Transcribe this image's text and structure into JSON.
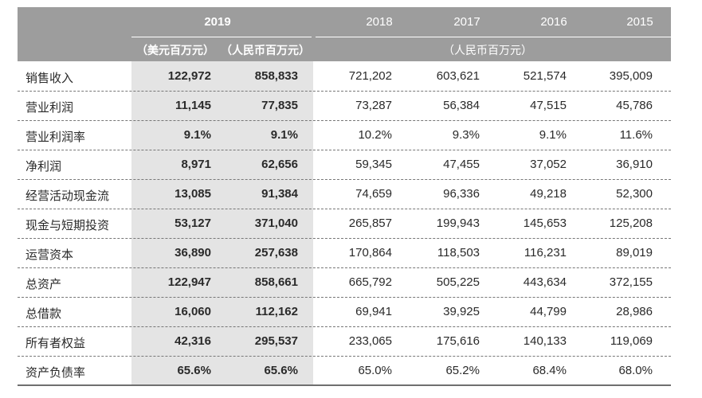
{
  "header": {
    "years": [
      "2019",
      "2018",
      "2017",
      "2016",
      "2015"
    ],
    "unit_usd": "（美元百万元）",
    "unit_rmb": "（人民币百万元）",
    "unit_rmb_hist": "（人民币百万元）"
  },
  "rows": [
    {
      "label": "销售收入",
      "usd": "122,972",
      "rmb": "858,833",
      "y2018": "721,202",
      "y2017": "603,621",
      "y2016": "521,574",
      "y2015": "395,009"
    },
    {
      "label": "营业利润",
      "usd": "11,145",
      "rmb": "77,835",
      "y2018": "73,287",
      "y2017": "56,384",
      "y2016": "47,515",
      "y2015": "45,786"
    },
    {
      "label": "营业利润率",
      "usd": "9.1%",
      "rmb": "9.1%",
      "y2018": "10.2%",
      "y2017": "9.3%",
      "y2016": "9.1%",
      "y2015": "11.6%"
    },
    {
      "label": "净利润",
      "usd": "8,971",
      "rmb": "62,656",
      "y2018": "59,345",
      "y2017": "47,455",
      "y2016": "37,052",
      "y2015": "36,910"
    },
    {
      "label": "经营活动现金流",
      "usd": "13,085",
      "rmb": "91,384",
      "y2018": "74,659",
      "y2017": "96,336",
      "y2016": "49,218",
      "y2015": "52,300"
    },
    {
      "label": "现金与短期投资",
      "usd": "53,127",
      "rmb": "371,040",
      "y2018": "265,857",
      "y2017": "199,943",
      "y2016": "145,653",
      "y2015": "125,208"
    },
    {
      "label": "运营资本",
      "usd": "36,890",
      "rmb": "257,638",
      "y2018": "170,864",
      "y2017": "118,503",
      "y2016": "116,231",
      "y2015": "89,019"
    },
    {
      "label": "总资产",
      "usd": "122,947",
      "rmb": "858,661",
      "y2018": "665,792",
      "y2017": "505,225",
      "y2016": "443,634",
      "y2015": "372,155"
    },
    {
      "label": "总借款",
      "usd": "16,060",
      "rmb": "112,162",
      "y2018": "69,941",
      "y2017": "39,925",
      "y2016": "44,799",
      "y2015": "28,986"
    },
    {
      "label": "所有者权益",
      "usd": "42,316",
      "rmb": "295,537",
      "y2018": "233,065",
      "y2017": "175,616",
      "y2016": "140,133",
      "y2015": "119,069"
    },
    {
      "label": "资产负债率",
      "usd": "65.6%",
      "rmb": "65.6%",
      "y2018": "65.0%",
      "y2017": "65.2%",
      "y2016": "68.4%",
      "y2015": "68.0%"
    }
  ]
}
